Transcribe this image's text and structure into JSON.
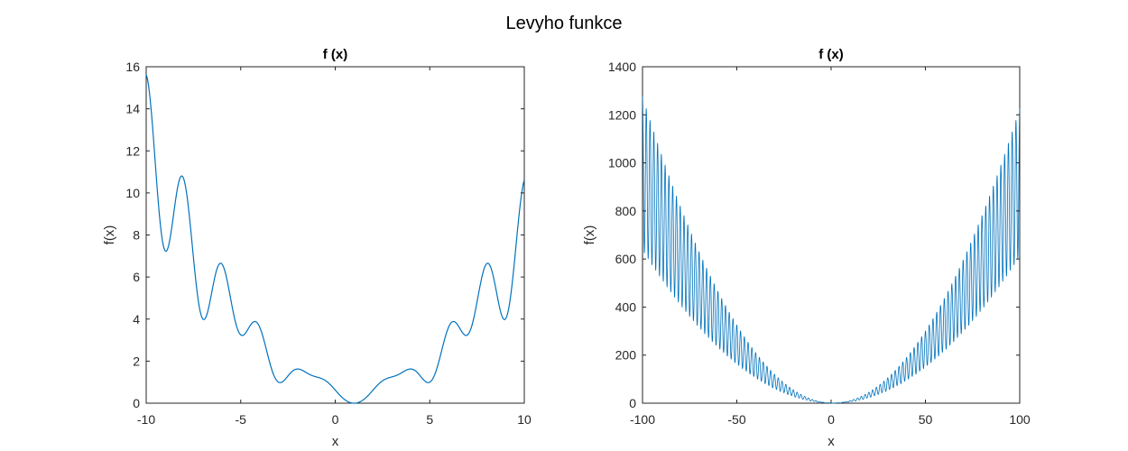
{
  "figure": {
    "title": "Levyho funkce",
    "line_color": "#0072bd"
  },
  "chart_data": [
    {
      "type": "line",
      "title": "f (x)",
      "xlabel": "x",
      "ylabel": "f(x)",
      "xlim": [
        -10,
        10
      ],
      "ylim": [
        0,
        16
      ],
      "xticks": [
        -10,
        -5,
        0,
        5,
        10
      ],
      "yticks": [
        0,
        2,
        4,
        6,
        8,
        10,
        12,
        14,
        16
      ],
      "grid": false,
      "function": "levy_1d",
      "series": [
        {
          "samples": 800,
          "x": [
            -10,
            -9.1,
            -8.2,
            -7.0,
            -6.1,
            -5.0,
            -4.3,
            -3.0,
            -2.0,
            -1.0,
            0,
            1,
            2,
            3,
            4,
            5,
            6.1,
            7.0,
            8.0,
            9.0,
            10
          ],
          "y": [
            15.5,
            7.3,
            10.8,
            4.0,
            6.6,
            3.2,
            3.9,
            1.0,
            1.6,
            1.2,
            0.9,
            0.0,
            0.9,
            1.2,
            1.6,
            1.0,
            3.9,
            3.2,
            6.6,
            4.0,
            10.5
          ]
        }
      ]
    },
    {
      "type": "line",
      "title": "f (x)",
      "xlabel": "x",
      "ylabel": "f(x)",
      "xlim": [
        -100,
        100
      ],
      "ylim": [
        0,
        1400
      ],
      "xticks": [
        -100,
        -50,
        0,
        50,
        100
      ],
      "yticks": [
        0,
        200,
        400,
        600,
        800,
        1000,
        1200,
        1400
      ],
      "grid": false,
      "function": "levy_1d",
      "series": [
        {
          "samples": 4000,
          "x": [
            -100,
            -75,
            -50,
            -25,
            0,
            1,
            25,
            50,
            75,
            100
          ],
          "y_upper": [
            1220,
            780,
            420,
            160,
            10,
            0,
            160,
            420,
            780,
            1200
          ],
          "y_lower": [
            600,
            360,
            170,
            50,
            0,
            0,
            50,
            170,
            360,
            600
          ]
        }
      ]
    }
  ]
}
